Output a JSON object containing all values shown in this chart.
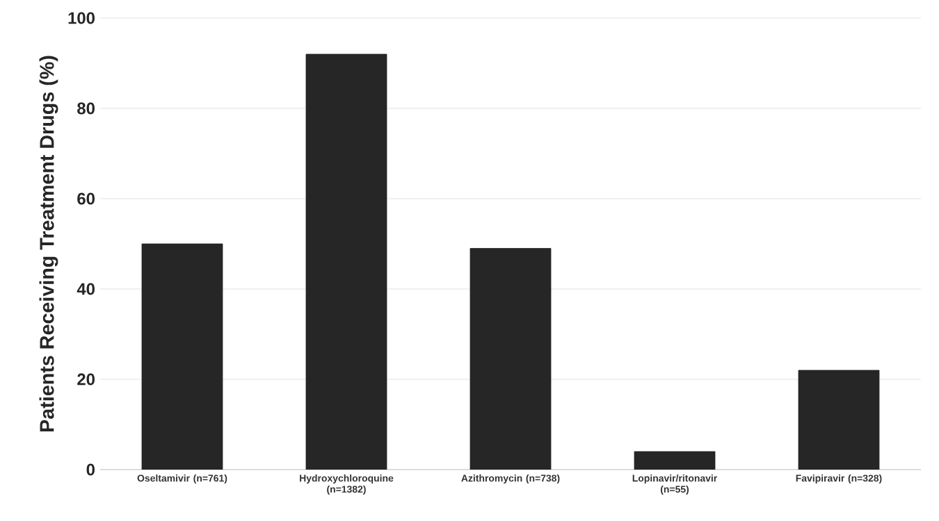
{
  "chart_data": {
    "type": "bar",
    "ylabel": "Patients Receiving Treatment Drugs (%)",
    "categories": [
      "Oseltamivir (n=761)",
      "Hydroxychloroquine (n=1382)",
      "Azithromycin (n=738)",
      "Lopinavir/ritonavir (n=55)",
      "Favipiravir (n=328)"
    ],
    "values": [
      50,
      92,
      49,
      4,
      22
    ],
    "color": "#262626",
    "ylim": [
      0,
      100
    ],
    "yticks": [
      0,
      20,
      40,
      60,
      80,
      100
    ],
    "grid": "y"
  }
}
